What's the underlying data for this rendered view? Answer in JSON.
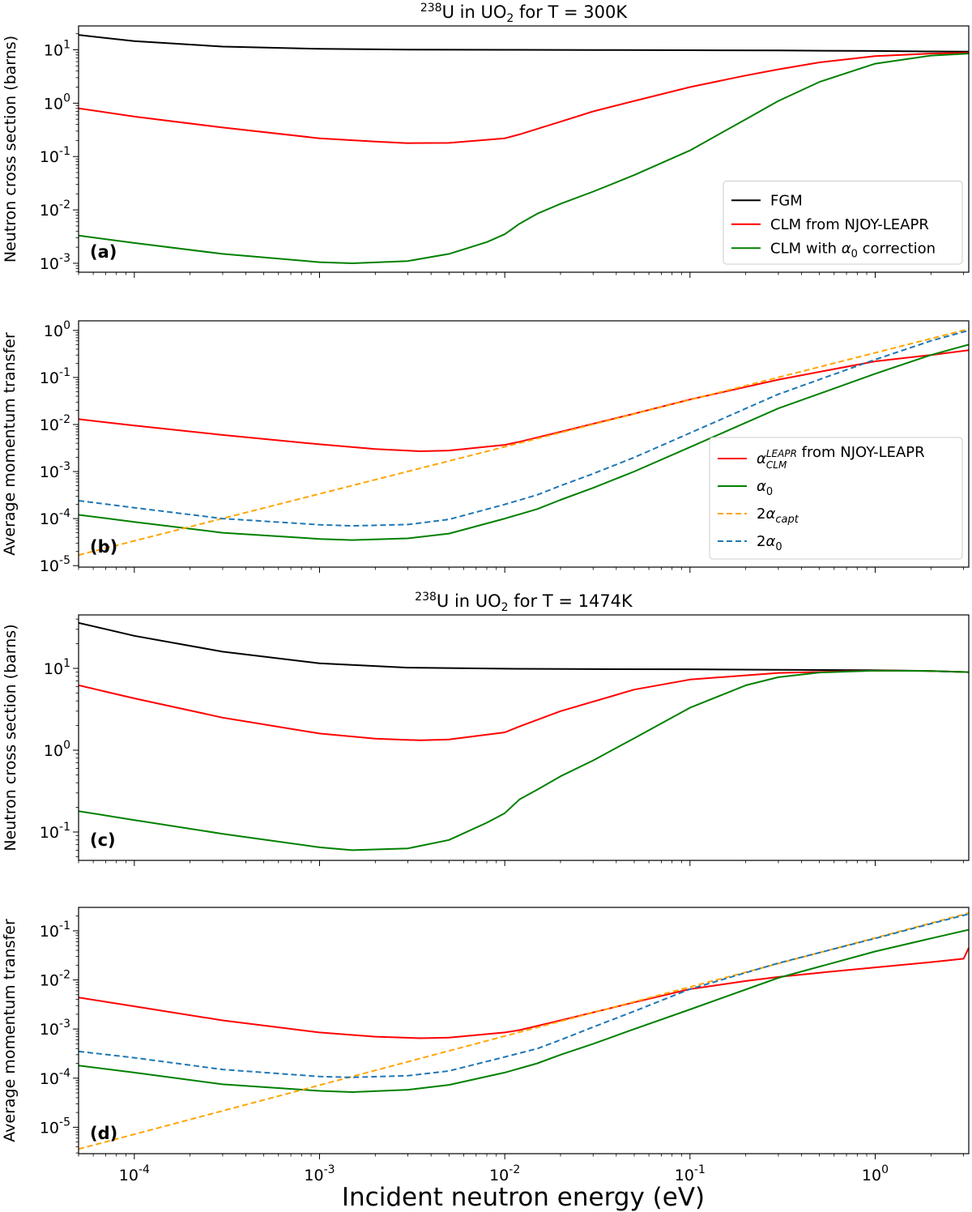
{
  "figure": {
    "xlabel": "Incident neutron energy (eV)"
  },
  "chart_data": [
    {
      "id": "a",
      "type": "line",
      "title": "238U in UO2 for T = 300K",
      "title_parts": {
        "sup": "238",
        "pre": "U in UO",
        "sub": "2",
        "post": " for T = 300K"
      },
      "panel_label": "(a)",
      "xlabel": "Incident neutron energy (eV)",
      "ylabel": "Neutron cross section (barns)",
      "xscale": "log",
      "yscale": "log",
      "xlim": [
        5e-05,
        3.2
      ],
      "ylim": [
        0.00068,
        28
      ],
      "xticks": [
        {
          "v": 0.0001,
          "sup": "-4"
        },
        {
          "v": 0.001,
          "sup": "-3"
        },
        {
          "v": 0.01,
          "sup": "-2"
        },
        {
          "v": 0.1,
          "sup": "-1"
        },
        {
          "v": 1,
          "sup": "0"
        }
      ],
      "yticks": [
        {
          "v": 0.001,
          "sup": "-3"
        },
        {
          "v": 0.01,
          "sup": "-2"
        },
        {
          "v": 0.1,
          "sup": "-1"
        },
        {
          "v": 1,
          "sup": "0"
        },
        {
          "v": 10,
          "sup": "1"
        }
      ],
      "show_xtick_labels": false,
      "legend": {
        "position": "lower right"
      },
      "series": [
        {
          "name": "FGM",
          "legend": [
            {
              "t": "FGM"
            }
          ],
          "color": "#000000",
          "dash": false,
          "x": [
            5e-05,
            0.0001,
            0.0003,
            0.001,
            0.003,
            0.01,
            0.03,
            0.1,
            0.3,
            1,
            2,
            3.2
          ],
          "y": [
            19,
            14.5,
            11.5,
            10.4,
            10.1,
            10.0,
            9.9,
            9.8,
            9.7,
            9.5,
            9.3,
            9.2
          ]
        },
        {
          "name": "CLM from NJOY-LEAPR",
          "legend": [
            {
              "t": "CLM from NJOY-LEAPR"
            }
          ],
          "color": "#ff0000",
          "dash": false,
          "x": [
            5e-05,
            0.0001,
            0.0003,
            0.001,
            0.002,
            0.003,
            0.005,
            0.01,
            0.012,
            0.02,
            0.03,
            0.05,
            0.1,
            0.2,
            0.3,
            0.5,
            1,
            2,
            3.2
          ],
          "y": [
            0.8,
            0.56,
            0.35,
            0.22,
            0.19,
            0.178,
            0.18,
            0.22,
            0.26,
            0.45,
            0.7,
            1.1,
            2.0,
            3.3,
            4.3,
            5.8,
            7.6,
            8.5,
            8.8
          ]
        },
        {
          "name": "CLM with α0 correction",
          "legend": [
            {
              "t": "CLM with "
            },
            {
              "t": "α",
              "it": true
            },
            {
              "sub": "0"
            },
            {
              "t": " correction"
            }
          ],
          "color": "#008000",
          "dash": false,
          "x": [
            5e-05,
            0.0001,
            0.0003,
            0.001,
            0.0015,
            0.003,
            0.005,
            0.008,
            0.01,
            0.012,
            0.015,
            0.02,
            0.03,
            0.05,
            0.1,
            0.2,
            0.3,
            0.5,
            1,
            2,
            3.2
          ],
          "y": [
            0.0033,
            0.0024,
            0.0015,
            0.00105,
            0.001,
            0.0011,
            0.0015,
            0.0025,
            0.0035,
            0.0055,
            0.0085,
            0.013,
            0.022,
            0.045,
            0.13,
            0.5,
            1.1,
            2.5,
            5.5,
            7.8,
            8.5
          ]
        }
      ]
    },
    {
      "id": "b",
      "type": "line",
      "title": "",
      "panel_label": "(b)",
      "xlabel": "Incident neutron energy (eV)",
      "ylabel": "Average momentum transfer",
      "xscale": "log",
      "yscale": "log",
      "xlim": [
        5e-05,
        3.2
      ],
      "ylim": [
        9.3e-06,
        1.6
      ],
      "xticks": [
        {
          "v": 0.0001,
          "sup": "-4"
        },
        {
          "v": 0.001,
          "sup": "-3"
        },
        {
          "v": 0.01,
          "sup": "-2"
        },
        {
          "v": 0.1,
          "sup": "-1"
        },
        {
          "v": 1,
          "sup": "0"
        }
      ],
      "yticks": [
        {
          "v": 1e-05,
          "sup": "-5"
        },
        {
          "v": 0.0001,
          "sup": "-4"
        },
        {
          "v": 0.001,
          "sup": "-3"
        },
        {
          "v": 0.01,
          "sup": "-2"
        },
        {
          "v": 0.1,
          "sup": "-1"
        },
        {
          "v": 1,
          "sup": "0"
        }
      ],
      "show_xtick_labels": false,
      "legend": {
        "position": "lower right"
      },
      "series": [
        {
          "name": "αCLM^LEAPR from NJOY-LEAPR",
          "legend": [
            {
              "t": "α",
              "it": true
            },
            {
              "subsup": [
                "CLM",
                "LEAPR"
              ]
            },
            {
              "t": " from NJOY-LEAPR"
            }
          ],
          "color": "#ff0000",
          "dash": false,
          "x": [
            5e-05,
            0.0001,
            0.0003,
            0.001,
            0.002,
            0.0035,
            0.005,
            0.01,
            0.012,
            0.02,
            0.05,
            0.1,
            0.3,
            1,
            2,
            3.2
          ],
          "y": [
            0.013,
            0.0095,
            0.006,
            0.0038,
            0.003,
            0.0027,
            0.0028,
            0.0037,
            0.0043,
            0.007,
            0.017,
            0.034,
            0.09,
            0.22,
            0.3,
            0.38
          ]
        },
        {
          "name": "α0",
          "legend": [
            {
              "t": "α",
              "it": true
            },
            {
              "sub": "0"
            }
          ],
          "color": "#008000",
          "dash": false,
          "x": [
            5e-05,
            0.0001,
            0.0003,
            0.001,
            0.0015,
            0.003,
            0.005,
            0.01,
            0.015,
            0.02,
            0.03,
            0.05,
            0.1,
            0.3,
            1,
            2,
            3.2
          ],
          "y": [
            0.00012,
            8.5e-05,
            5e-05,
            3.7e-05,
            3.5e-05,
            3.8e-05,
            4.8e-05,
            0.0001,
            0.00016,
            0.00025,
            0.00045,
            0.001,
            0.0033,
            0.022,
            0.12,
            0.3,
            0.5
          ]
        },
        {
          "name": "2αcapt",
          "legend": [
            {
              "t": "2"
            },
            {
              "t": "α",
              "it": true
            },
            {
              "sub": "capt",
              "it": true
            }
          ],
          "color": "#ffa500",
          "dash": true,
          "x": [
            5e-05,
            3.2
          ],
          "y": [
            1.68e-05,
            1.07
          ]
        },
        {
          "name": "2α0",
          "legend": [
            {
              "t": "2"
            },
            {
              "t": "α",
              "it": true
            },
            {
              "sub": "0"
            }
          ],
          "color": "#1f77b4",
          "dash": true,
          "x": [
            5e-05,
            0.0001,
            0.0003,
            0.001,
            0.0015,
            0.003,
            0.005,
            0.01,
            0.015,
            0.02,
            0.03,
            0.05,
            0.1,
            0.3,
            1,
            2,
            3.2
          ],
          "y": [
            0.00024,
            0.00017,
            0.0001,
            7.4e-05,
            7e-05,
            7.5e-05,
            9.6e-05,
            0.0002,
            0.00032,
            0.0005,
            0.0009,
            0.002,
            0.0066,
            0.044,
            0.24,
            0.6,
            1.0
          ]
        }
      ]
    },
    {
      "id": "c",
      "type": "line",
      "title": "238U in UO2 for T = 1474K",
      "title_parts": {
        "sup": "238",
        "pre": "U in UO",
        "sub": "2",
        "post": " for T = 1474K"
      },
      "panel_label": "(c)",
      "xlabel": "Incident neutron energy (eV)",
      "ylabel": "Neutron cross section (barns)",
      "xscale": "log",
      "yscale": "log",
      "xlim": [
        5e-05,
        3.2
      ],
      "ylim": [
        0.045,
        45
      ],
      "xticks": [
        {
          "v": 0.0001,
          "sup": "-4"
        },
        {
          "v": 0.001,
          "sup": "-3"
        },
        {
          "v": 0.01,
          "sup": "-2"
        },
        {
          "v": 0.1,
          "sup": "-1"
        },
        {
          "v": 1,
          "sup": "0"
        }
      ],
      "yticks": [
        {
          "v": 0.1,
          "sup": "-1"
        },
        {
          "v": 1,
          "sup": "0"
        },
        {
          "v": 10,
          "sup": "1"
        }
      ],
      "show_xtick_labels": false,
      "legend": null,
      "series": [
        {
          "name": "FGM",
          "color": "#000000",
          "dash": false,
          "x": [
            5e-05,
            0.0001,
            0.0003,
            0.001,
            0.003,
            0.01,
            0.03,
            0.1,
            0.3,
            1,
            2,
            3.2
          ],
          "y": [
            36,
            25,
            16,
            11.5,
            10.2,
            9.9,
            9.8,
            9.75,
            9.6,
            9.5,
            9.3,
            9.0
          ]
        },
        {
          "name": "CLM from NJOY-LEAPR",
          "color": "#ff0000",
          "dash": false,
          "x": [
            5e-05,
            0.0001,
            0.0003,
            0.001,
            0.002,
            0.0035,
            0.005,
            0.01,
            0.012,
            0.02,
            0.05,
            0.1,
            0.3,
            1,
            2,
            3.2
          ],
          "y": [
            6.2,
            4.3,
            2.5,
            1.6,
            1.38,
            1.32,
            1.35,
            1.65,
            1.95,
            3.0,
            5.5,
            7.3,
            8.8,
            9.4,
            9.3,
            9.0
          ]
        },
        {
          "name": "CLM with α0 correction",
          "color": "#008000",
          "dash": false,
          "x": [
            5e-05,
            0.0001,
            0.0003,
            0.001,
            0.0015,
            0.003,
            0.005,
            0.008,
            0.01,
            0.012,
            0.015,
            0.02,
            0.03,
            0.05,
            0.1,
            0.2,
            0.3,
            0.5,
            1,
            2,
            3.2
          ],
          "y": [
            0.18,
            0.14,
            0.095,
            0.065,
            0.06,
            0.063,
            0.08,
            0.13,
            0.17,
            0.25,
            0.33,
            0.48,
            0.75,
            1.4,
            3.3,
            6.2,
            7.8,
            8.9,
            9.4,
            9.3,
            9.0
          ]
        }
      ]
    },
    {
      "id": "d",
      "type": "line",
      "title": "",
      "panel_label": "(d)",
      "xlabel": "Incident neutron energy (eV)",
      "ylabel": "Average momentum transfer",
      "xscale": "log",
      "yscale": "log",
      "xlim": [
        5e-05,
        3.2
      ],
      "ylim": [
        2.9e-06,
        0.3
      ],
      "xticks": [
        {
          "v": 0.0001,
          "sup": "-4"
        },
        {
          "v": 0.001,
          "sup": "-3"
        },
        {
          "v": 0.01,
          "sup": "-2"
        },
        {
          "v": 0.1,
          "sup": "-1"
        },
        {
          "v": 1,
          "sup": "0"
        }
      ],
      "yticks": [
        {
          "v": 1e-05,
          "sup": "-5"
        },
        {
          "v": 0.0001,
          "sup": "-4"
        },
        {
          "v": 0.001,
          "sup": "-3"
        },
        {
          "v": 0.01,
          "sup": "-2"
        },
        {
          "v": 0.1,
          "sup": "-1"
        }
      ],
      "show_xtick_labels": true,
      "legend": null,
      "series": [
        {
          "name": "αCLM^LEAPR from NJOY-LEAPR",
          "color": "#ff0000",
          "dash": false,
          "x": [
            5e-05,
            0.0001,
            0.0003,
            0.001,
            0.002,
            0.0035,
            0.005,
            0.01,
            0.012,
            0.02,
            0.05,
            0.1,
            0.2,
            0.3,
            0.5,
            1,
            2,
            3,
            3.2
          ],
          "y": [
            0.0044,
            0.0029,
            0.0015,
            0.00085,
            0.0007,
            0.00065,
            0.00067,
            0.00085,
            0.00095,
            0.0015,
            0.0035,
            0.0065,
            0.0095,
            0.0115,
            0.014,
            0.018,
            0.023,
            0.027,
            0.045
          ]
        },
        {
          "name": "α0",
          "color": "#008000",
          "dash": false,
          "x": [
            5e-05,
            0.0001,
            0.0003,
            0.001,
            0.0015,
            0.003,
            0.005,
            0.01,
            0.015,
            0.02,
            0.03,
            0.05,
            0.1,
            0.3,
            1,
            2,
            3.2
          ],
          "y": [
            0.00018,
            0.00013,
            7.5e-05,
            5.5e-05,
            5.2e-05,
            5.8e-05,
            7.3e-05,
            0.00013,
            0.0002,
            0.0003,
            0.0005,
            0.001,
            0.0025,
            0.011,
            0.038,
            0.07,
            0.105
          ]
        },
        {
          "name": "2αcapt",
          "color": "#ffa500",
          "dash": true,
          "x": [
            5e-05,
            3.2
          ],
          "y": [
            3.6e-06,
            0.23
          ]
        },
        {
          "name": "2α0",
          "color": "#1f77b4",
          "dash": true,
          "x": [
            5e-05,
            0.0001,
            0.0003,
            0.001,
            0.0015,
            0.003,
            0.005,
            0.01,
            0.015,
            0.02,
            0.03,
            0.05,
            0.1,
            0.3,
            1,
            2,
            3.2
          ],
          "y": [
            0.00035,
            0.00026,
            0.00015,
            0.000108,
            0.000104,
            0.000112,
            0.00014,
            0.00027,
            0.0004,
            0.0006,
            0.0011,
            0.0023,
            0.0065,
            0.022,
            0.07,
            0.14,
            0.22
          ]
        }
      ]
    }
  ]
}
